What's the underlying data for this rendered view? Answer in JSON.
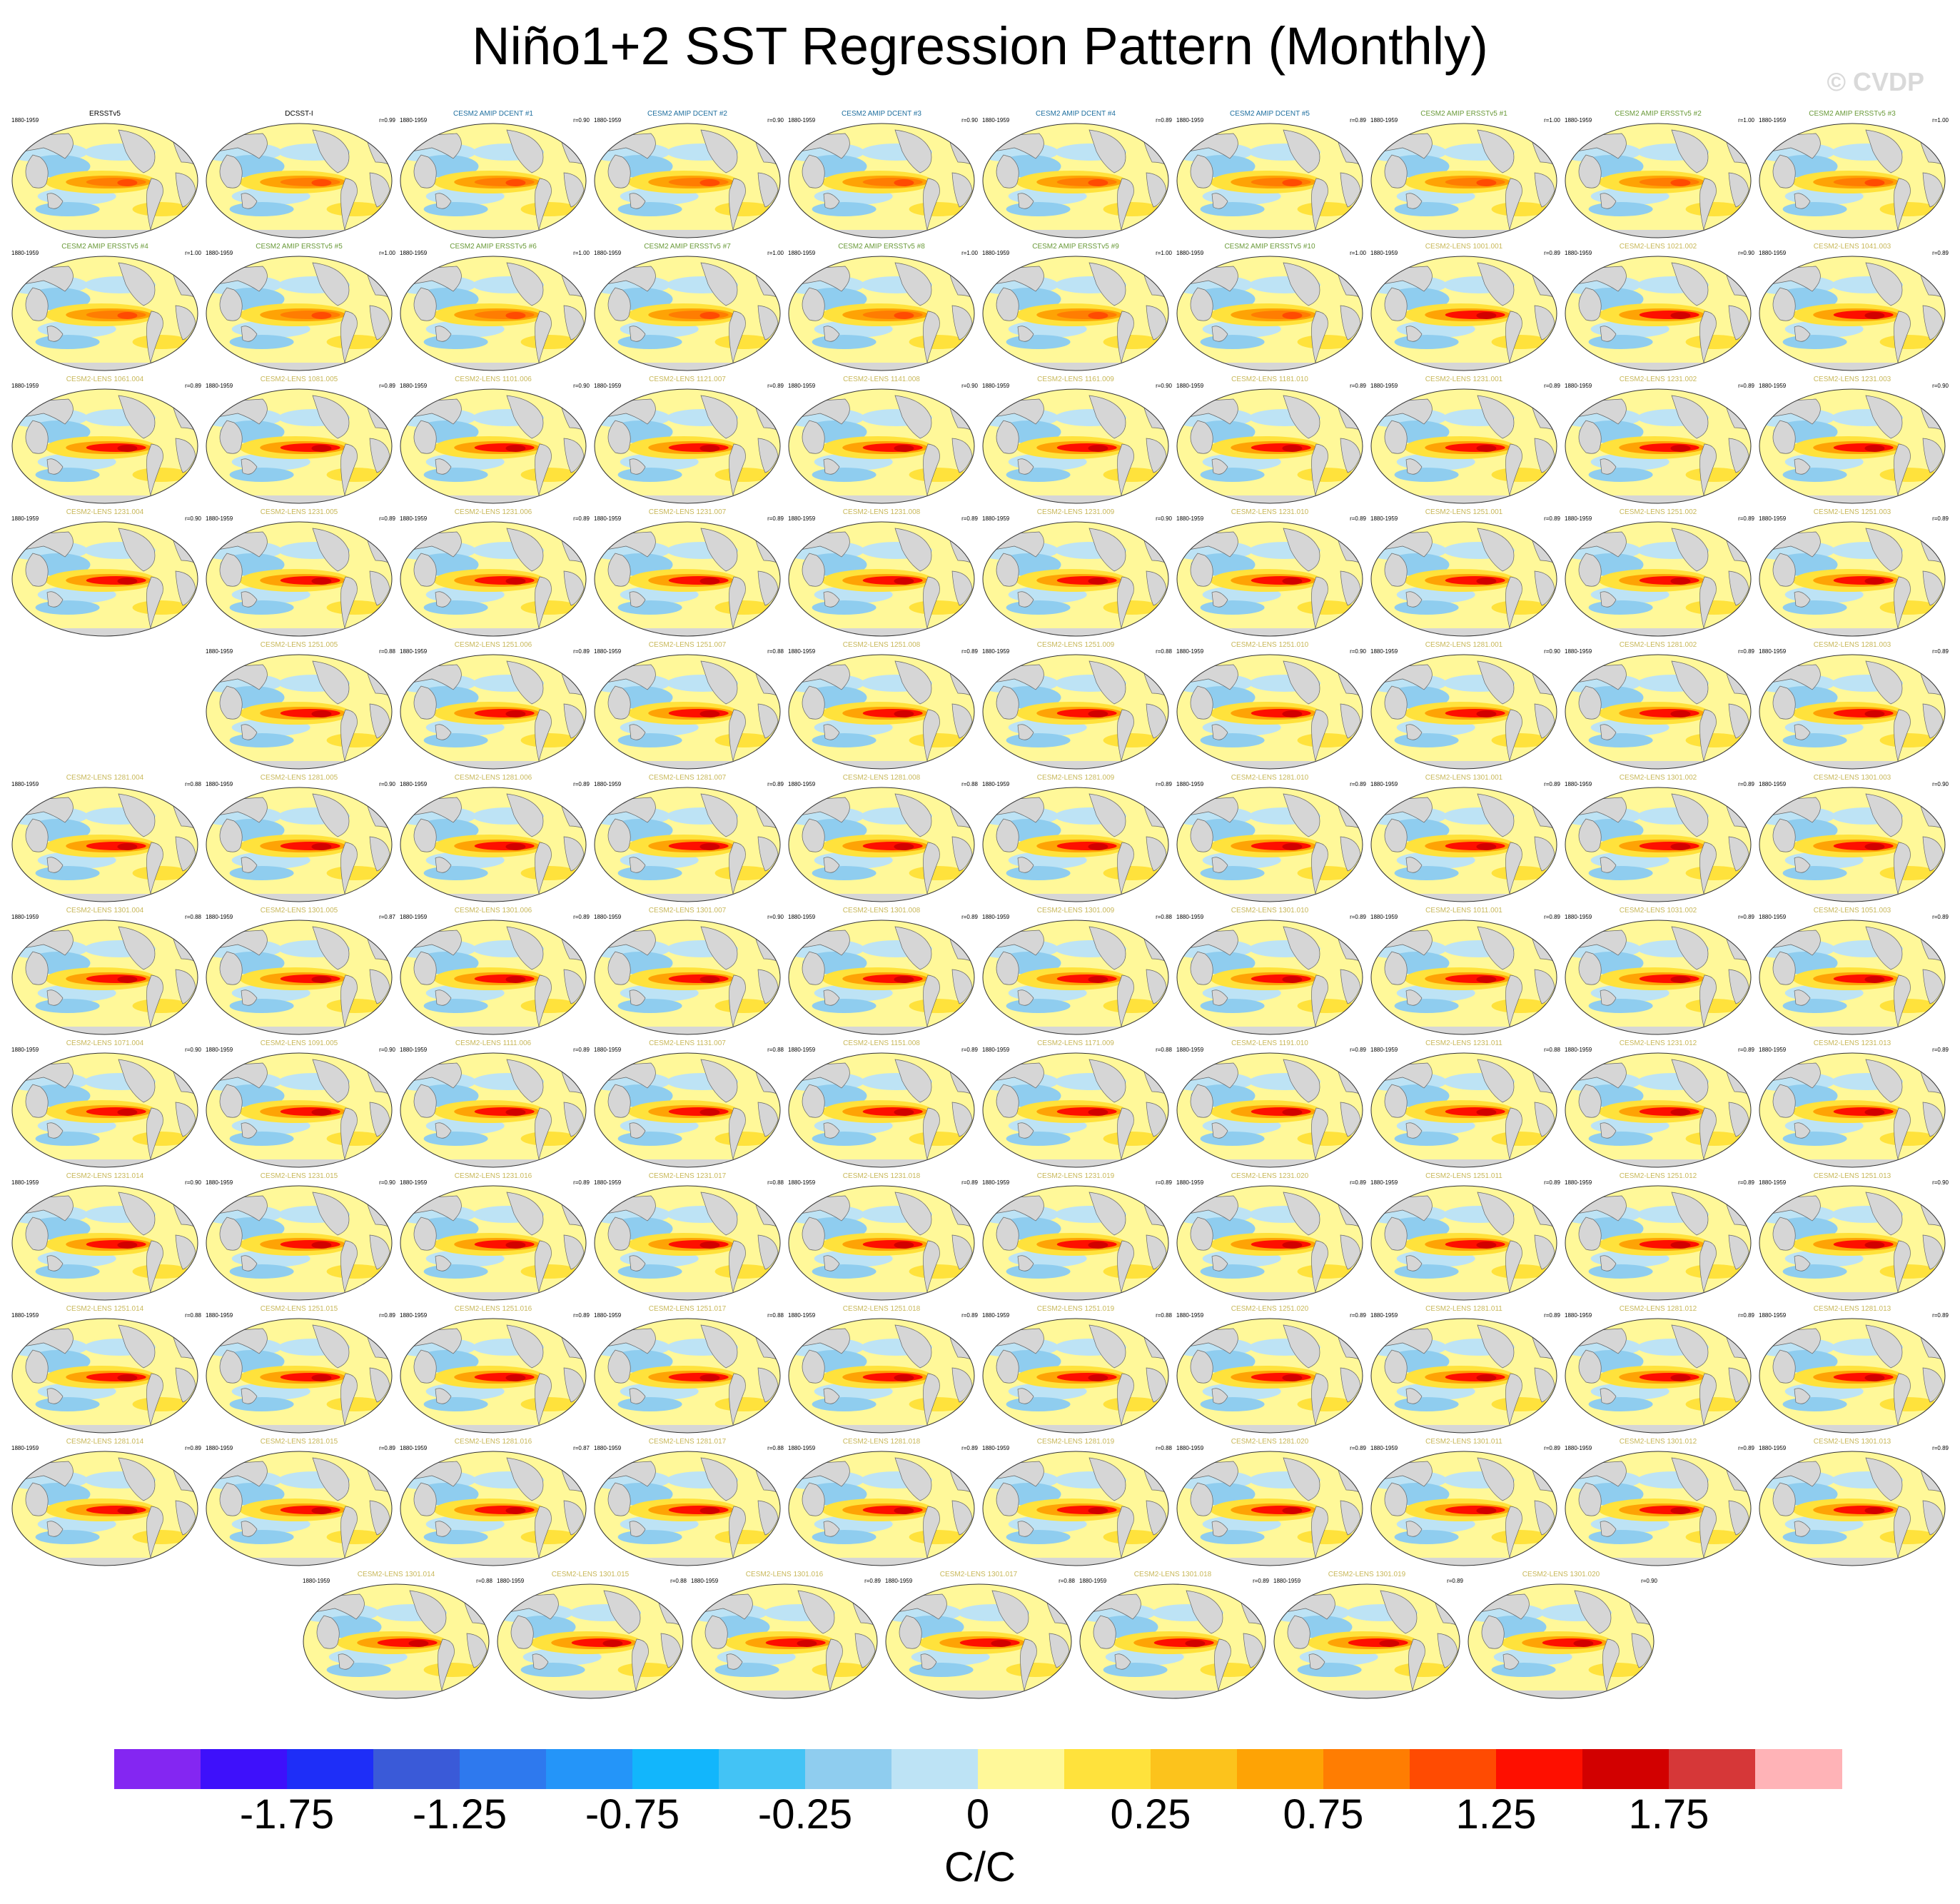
{
  "title": "Niño1+2 SST Regression Pattern (Monthly)",
  "watermark": "© CVDP",
  "chart_data": {
    "type": "heatmap",
    "description_rows": 12,
    "panels": [
      {
        "title": "ERSSTv5",
        "title_color": "#000000",
        "years": "1880-1959",
        "r": ""
      },
      {
        "title": "DCSST-I",
        "title_color": "#000000",
        "years": "",
        "r": "r=0.99"
      },
      {
        "title": "CESM2 AMIP DCENT #1",
        "title_color": "#1f6f9f",
        "years": "1880-1959",
        "r": "r=0.90"
      },
      {
        "title": "CESM2 AMIP DCENT #2",
        "title_color": "#1f6f9f",
        "years": "1880-1959",
        "r": "r=0.90"
      },
      {
        "title": "CESM2 AMIP DCENT #3",
        "title_color": "#1f6f9f",
        "years": "1880-1959",
        "r": "r=0.90"
      },
      {
        "title": "CESM2 AMIP DCENT #4",
        "title_color": "#1f6f9f",
        "years": "1880-1959",
        "r": "r=0.89"
      },
      {
        "title": "CESM2 AMIP DCENT #5",
        "title_color": "#1f6f9f",
        "years": "1880-1959",
        "r": "r=0.89"
      },
      {
        "title": "CESM2 AMIP ERSSTv5 #1",
        "title_color": "#6a9a3a",
        "years": "1880-1959",
        "r": "r=1.00"
      },
      {
        "title": "CESM2 AMIP ERSSTv5 #2",
        "title_color": "#6a9a3a",
        "years": "1880-1959",
        "r": "r=1.00"
      },
      {
        "title": "CESM2 AMIP ERSSTv5 #3",
        "title_color": "#6a9a3a",
        "years": "1880-1959",
        "r": "r=1.00"
      },
      {
        "title": "CESM2 AMIP ERSSTv5 #4",
        "title_color": "#6a9a3a",
        "years": "1880-1959",
        "r": "r=1.00"
      },
      {
        "title": "CESM2 AMIP ERSSTv5 #5",
        "title_color": "#6a9a3a",
        "years": "1880-1959",
        "r": "r=1.00"
      },
      {
        "title": "CESM2 AMIP ERSSTv5 #6",
        "title_color": "#6a9a3a",
        "years": "1880-1959",
        "r": "r=1.00"
      },
      {
        "title": "CESM2 AMIP ERSSTv5 #7",
        "title_color": "#6a9a3a",
        "years": "1880-1959",
        "r": "r=1.00"
      },
      {
        "title": "CESM2 AMIP ERSSTv5 #8",
        "title_color": "#6a9a3a",
        "years": "1880-1959",
        "r": "r=1.00"
      },
      {
        "title": "CESM2 AMIP ERSSTv5 #9",
        "title_color": "#6a9a3a",
        "years": "1880-1959",
        "r": "r=1.00"
      },
      {
        "title": "CESM2 AMIP ERSSTv5 #10",
        "title_color": "#6a9a3a",
        "years": "1880-1959",
        "r": "r=1.00"
      },
      {
        "title": "CESM2-LENS 1001.001",
        "title_color": "#c8b85a",
        "years": "1880-1959",
        "r": "r=0.89"
      },
      {
        "title": "CESM2-LENS 1021.002",
        "title_color": "#c8b85a",
        "years": "1880-1959",
        "r": "r=0.90"
      },
      {
        "title": "CESM2-LENS 1041.003",
        "title_color": "#c8b85a",
        "years": "1880-1959",
        "r": "r=0.89"
      },
      {
        "title": "CESM2-LENS 1061.004",
        "title_color": "#c8b85a",
        "years": "1880-1959",
        "r": "r=0.89"
      },
      {
        "title": "CESM2-LENS 1081.005",
        "title_color": "#c8b85a",
        "years": "1880-1959",
        "r": "r=0.89"
      },
      {
        "title": "CESM2-LENS 1101.006",
        "title_color": "#c8b85a",
        "years": "1880-1959",
        "r": "r=0.90"
      },
      {
        "title": "CESM2-LENS 1121.007",
        "title_color": "#c8b85a",
        "years": "1880-1959",
        "r": "r=0.89"
      },
      {
        "title": "CESM2-LENS 1141.008",
        "title_color": "#c8b85a",
        "years": "1880-1959",
        "r": "r=0.90"
      },
      {
        "title": "CESM2-LENS 1161.009",
        "title_color": "#c8b85a",
        "years": "1880-1959",
        "r": "r=0.90"
      },
      {
        "title": "CESM2-LENS 1181.010",
        "title_color": "#c8b85a",
        "years": "1880-1959",
        "r": "r=0.89"
      },
      {
        "title": "CESM2-LENS 1231.001",
        "title_color": "#c8b85a",
        "years": "1880-1959",
        "r": "r=0.89"
      },
      {
        "title": "CESM2-LENS 1231.002",
        "title_color": "#c8b85a",
        "years": "1880-1959",
        "r": "r=0.89"
      },
      {
        "title": "CESM2-LENS 1231.003",
        "title_color": "#c8b85a",
        "years": "1880-1959",
        "r": "r=0.90"
      },
      {
        "title": "CESM2-LENS 1231.004",
        "title_color": "#c8b85a",
        "years": "1880-1959",
        "r": "r=0.90"
      },
      {
        "title": "CESM2-LENS 1231.005",
        "title_color": "#c8b85a",
        "years": "1880-1959",
        "r": "r=0.89"
      },
      {
        "title": "CESM2-LENS 1231.006",
        "title_color": "#c8b85a",
        "years": "1880-1959",
        "r": "r=0.89"
      },
      {
        "title": "CESM2-LENS 1231.007",
        "title_color": "#c8b85a",
        "years": "1880-1959",
        "r": "r=0.89"
      },
      {
        "title": "CESM2-LENS 1231.008",
        "title_color": "#c8b85a",
        "years": "1880-1959",
        "r": "r=0.89"
      },
      {
        "title": "CESM2-LENS 1231.009",
        "title_color": "#c8b85a",
        "years": "1880-1959",
        "r": "r=0.90"
      },
      {
        "title": "CESM2-LENS 1231.010",
        "title_color": "#c8b85a",
        "years": "1880-1959",
        "r": "r=0.89"
      },
      {
        "title": "CESM2-LENS 1251.001",
        "title_color": "#c8b85a",
        "years": "1880-1959",
        "r": "r=0.89"
      },
      {
        "title": "CESM2-LENS 1251.002",
        "title_color": "#c8b85a",
        "years": "1880-1959",
        "r": "r=0.89"
      },
      {
        "title": "CESM2-LENS 1251.003",
        "title_color": "#c8b85a",
        "years": "1880-1959",
        "r": "r=0.89"
      },
      {
        "title": "CESM2-LENS 1251.005",
        "title_color": "#c8b85a",
        "years": "1880-1959",
        "r": "r=0.88"
      },
      {
        "title": "CESM2-LENS 1251.006",
        "title_color": "#c8b85a",
        "years": "1880-1959",
        "r": "r=0.89"
      },
      {
        "title": "CESM2-LENS 1251.007",
        "title_color": "#c8b85a",
        "years": "1880-1959",
        "r": "r=0.88"
      },
      {
        "title": "CESM2-LENS 1251.008",
        "title_color": "#c8b85a",
        "years": "1880-1959",
        "r": "r=0.89"
      },
      {
        "title": "CESM2-LENS 1251.009",
        "title_color": "#c8b85a",
        "years": "1880-1959",
        "r": "r=0.88"
      },
      {
        "title": "CESM2-LENS 1251.010",
        "title_color": "#c8b85a",
        "years": "1880-1959",
        "r": "r=0.90"
      },
      {
        "title": "CESM2-LENS 1281.001",
        "title_color": "#c8b85a",
        "years": "1880-1959",
        "r": "r=0.90"
      },
      {
        "title": "CESM2-LENS 1281.002",
        "title_color": "#c8b85a",
        "years": "1880-1959",
        "r": "r=0.89"
      },
      {
        "title": "CESM2-LENS 1281.003",
        "title_color": "#c8b85a",
        "years": "1880-1959",
        "r": "r=0.89"
      },
      {
        "title": "CESM2-LENS 1281.004",
        "title_color": "#c8b85a",
        "years": "1880-1959",
        "r": "r=0.88"
      },
      {
        "title": "CESM2-LENS 1281.005",
        "title_color": "#c8b85a",
        "years": "1880-1959",
        "r": "r=0.90"
      },
      {
        "title": "CESM2-LENS 1281.006",
        "title_color": "#c8b85a",
        "years": "1880-1959",
        "r": "r=0.89"
      },
      {
        "title": "CESM2-LENS 1281.007",
        "title_color": "#c8b85a",
        "years": "1880-1959",
        "r": "r=0.89"
      },
      {
        "title": "CESM2-LENS 1281.008",
        "title_color": "#c8b85a",
        "years": "1880-1959",
        "r": "r=0.88"
      },
      {
        "title": "CESM2-LENS 1281.009",
        "title_color": "#c8b85a",
        "years": "1880-1959",
        "r": "r=0.89"
      },
      {
        "title": "CESM2-LENS 1281.010",
        "title_color": "#c8b85a",
        "years": "1880-1959",
        "r": "r=0.89"
      },
      {
        "title": "CESM2-LENS 1301.001",
        "title_color": "#c8b85a",
        "years": "1880-1959",
        "r": "r=0.89"
      },
      {
        "title": "CESM2-LENS 1301.002",
        "title_color": "#c8b85a",
        "years": "1880-1959",
        "r": "r=0.89"
      },
      {
        "title": "CESM2-LENS 1301.003",
        "title_color": "#c8b85a",
        "years": "1880-1959",
        "r": "r=0.90"
      },
      {
        "title": "CESM2-LENS 1301.004",
        "title_color": "#c8b85a",
        "years": "1880-1959",
        "r": "r=0.88"
      },
      {
        "title": "CESM2-LENS 1301.005",
        "title_color": "#c8b85a",
        "years": "1880-1959",
        "r": "r=0.87"
      },
      {
        "title": "CESM2-LENS 1301.006",
        "title_color": "#c8b85a",
        "years": "1880-1959",
        "r": "r=0.89"
      },
      {
        "title": "CESM2-LENS 1301.007",
        "title_color": "#c8b85a",
        "years": "1880-1959",
        "r": "r=0.90"
      },
      {
        "title": "CESM2-LENS 1301.008",
        "title_color": "#c8b85a",
        "years": "1880-1959",
        "r": "r=0.89"
      },
      {
        "title": "CESM2-LENS 1301.009",
        "title_color": "#c8b85a",
        "years": "1880-1959",
        "r": "r=0.88"
      },
      {
        "title": "CESM2-LENS 1301.010",
        "title_color": "#c8b85a",
        "years": "1880-1959",
        "r": "r=0.89"
      },
      {
        "title": "CESM2-LENS 1011.001",
        "title_color": "#c8b85a",
        "years": "1880-1959",
        "r": "r=0.89"
      },
      {
        "title": "CESM2-LENS 1031.002",
        "title_color": "#c8b85a",
        "years": "1880-1959",
        "r": "r=0.89"
      },
      {
        "title": "CESM2-LENS 1051.003",
        "title_color": "#c8b85a",
        "years": "1880-1959",
        "r": "r=0.89"
      },
      {
        "title": "CESM2-LENS 1071.004",
        "title_color": "#c8b85a",
        "years": "1880-1959",
        "r": "r=0.90"
      },
      {
        "title": "CESM2-LENS 1091.005",
        "title_color": "#c8b85a",
        "years": "1880-1959",
        "r": "r=0.90"
      },
      {
        "title": "CESM2-LENS 1111.006",
        "title_color": "#c8b85a",
        "years": "1880-1959",
        "r": "r=0.89"
      },
      {
        "title": "CESM2-LENS 1131.007",
        "title_color": "#c8b85a",
        "years": "1880-1959",
        "r": "r=0.88"
      },
      {
        "title": "CESM2-LENS 1151.008",
        "title_color": "#c8b85a",
        "years": "1880-1959",
        "r": "r=0.89"
      },
      {
        "title": "CESM2-LENS 1171.009",
        "title_color": "#c8b85a",
        "years": "1880-1959",
        "r": "r=0.88"
      },
      {
        "title": "CESM2-LENS 1191.010",
        "title_color": "#c8b85a",
        "years": "1880-1959",
        "r": "r=0.89"
      },
      {
        "title": "CESM2-LENS 1231.011",
        "title_color": "#c8b85a",
        "years": "1880-1959",
        "r": "r=0.88"
      },
      {
        "title": "CESM2-LENS 1231.012",
        "title_color": "#c8b85a",
        "years": "1880-1959",
        "r": "r=0.89"
      },
      {
        "title": "CESM2-LENS 1231.013",
        "title_color": "#c8b85a",
        "years": "1880-1959",
        "r": "r=0.89"
      },
      {
        "title": "CESM2-LENS 1231.014",
        "title_color": "#c8b85a",
        "years": "1880-1959",
        "r": "r=0.90"
      },
      {
        "title": "CESM2-LENS 1231.015",
        "title_color": "#c8b85a",
        "years": "1880-1959",
        "r": "r=0.90"
      },
      {
        "title": "CESM2-LENS 1231.016",
        "title_color": "#c8b85a",
        "years": "1880-1959",
        "r": "r=0.89"
      },
      {
        "title": "CESM2-LENS 1231.017",
        "title_color": "#c8b85a",
        "years": "1880-1959",
        "r": "r=0.88"
      },
      {
        "title": "CESM2-LENS 1231.018",
        "title_color": "#c8b85a",
        "years": "1880-1959",
        "r": "r=0.89"
      },
      {
        "title": "CESM2-LENS 1231.019",
        "title_color": "#c8b85a",
        "years": "1880-1959",
        "r": "r=0.89"
      },
      {
        "title": "CESM2-LENS 1231.020",
        "title_color": "#c8b85a",
        "years": "1880-1959",
        "r": "r=0.89"
      },
      {
        "title": "CESM2-LENS 1251.011",
        "title_color": "#c8b85a",
        "years": "1880-1959",
        "r": "r=0.89"
      },
      {
        "title": "CESM2-LENS 1251.012",
        "title_color": "#c8b85a",
        "years": "1880-1959",
        "r": "r=0.89"
      },
      {
        "title": "CESM2-LENS 1251.013",
        "title_color": "#c8b85a",
        "years": "1880-1959",
        "r": "r=0.90"
      },
      {
        "title": "CESM2-LENS 1251.014",
        "title_color": "#c8b85a",
        "years": "1880-1959",
        "r": "r=0.88"
      },
      {
        "title": "CESM2-LENS 1251.015",
        "title_color": "#c8b85a",
        "years": "1880-1959",
        "r": "r=0.89"
      },
      {
        "title": "CESM2-LENS 1251.016",
        "title_color": "#c8b85a",
        "years": "1880-1959",
        "r": "r=0.89"
      },
      {
        "title": "CESM2-LENS 1251.017",
        "title_color": "#c8b85a",
        "years": "1880-1959",
        "r": "r=0.88"
      },
      {
        "title": "CESM2-LENS 1251.018",
        "title_color": "#c8b85a",
        "years": "1880-1959",
        "r": "r=0.89"
      },
      {
        "title": "CESM2-LENS 1251.019",
        "title_color": "#c8b85a",
        "years": "1880-1959",
        "r": "r=0.88"
      },
      {
        "title": "CESM2-LENS 1251.020",
        "title_color": "#c8b85a",
        "years": "1880-1959",
        "r": "r=0.89"
      },
      {
        "title": "CESM2-LENS 1281.011",
        "title_color": "#c8b85a",
        "years": "1880-1959",
        "r": "r=0.89"
      },
      {
        "title": "CESM2-LENS 1281.012",
        "title_color": "#c8b85a",
        "years": "1880-1959",
        "r": "r=0.89"
      },
      {
        "title": "CESM2-LENS 1281.013",
        "title_color": "#c8b85a",
        "years": "1880-1959",
        "r": "r=0.89"
      },
      {
        "title": "CESM2-LENS 1281.014",
        "title_color": "#c8b85a",
        "years": "1880-1959",
        "r": "r=0.89"
      },
      {
        "title": "CESM2-LENS 1281.015",
        "title_color": "#c8b85a",
        "years": "1880-1959",
        "r": "r=0.89"
      },
      {
        "title": "CESM2-LENS 1281.016",
        "title_color": "#c8b85a",
        "years": "1880-1959",
        "r": "r=0.87"
      },
      {
        "title": "CESM2-LENS 1281.017",
        "title_color": "#c8b85a",
        "years": "1880-1959",
        "r": "r=0.88"
      },
      {
        "title": "CESM2-LENS 1281.018",
        "title_color": "#c8b85a",
        "years": "1880-1959",
        "r": "r=0.89"
      },
      {
        "title": "CESM2-LENS 1281.019",
        "title_color": "#c8b85a",
        "years": "1880-1959",
        "r": "r=0.88"
      },
      {
        "title": "CESM2-LENS 1281.020",
        "title_color": "#c8b85a",
        "years": "1880-1959",
        "r": "r=0.89"
      },
      {
        "title": "CESM2-LENS 1301.011",
        "title_color": "#c8b85a",
        "years": "1880-1959",
        "r": "r=0.89"
      },
      {
        "title": "CESM2-LENS 1301.012",
        "title_color": "#c8b85a",
        "years": "1880-1959",
        "r": "r=0.89"
      },
      {
        "title": "CESM2-LENS 1301.013",
        "title_color": "#c8b85a",
        "years": "1880-1959",
        "r": "r=0.89"
      },
      {
        "title": "CESM2-LENS 1301.014",
        "title_color": "#c8b85a",
        "years": "1880-1959",
        "r": "r=0.88"
      },
      {
        "title": "CESM2-LENS 1301.015",
        "title_color": "#c8b85a",
        "years": "1880-1959",
        "r": "r=0.88"
      },
      {
        "title": "CESM2-LENS 1301.016",
        "title_color": "#c8b85a",
        "years": "1880-1959",
        "r": "r=0.89"
      },
      {
        "title": "CESM2-LENS 1301.017",
        "title_color": "#c8b85a",
        "years": "1880-1959",
        "r": "r=0.88"
      },
      {
        "title": "CESM2-LENS 1301.018",
        "title_color": "#c8b85a",
        "years": "1880-1959",
        "r": "r=0.89"
      },
      {
        "title": "CESM2-LENS 1301.019",
        "title_color": "#c8b85a",
        "years": "1880-1959",
        "r": "r=0.89"
      },
      {
        "title": "CESM2-LENS 1301.020",
        "title_color": "#c8b85a",
        "years": "",
        "r": "r=0.90"
      }
    ],
    "colorbar": {
      "colors": [
        "#8426f2",
        "#3e10fb",
        "#1e2ef8",
        "#3a5ad8",
        "#2e79ee",
        "#2495f9",
        "#12b6fc",
        "#43c3f5",
        "#8fcdef",
        "#bde3f5",
        "#fff899",
        "#ffe23c",
        "#fcc31c",
        "#fea305",
        "#ff7d02",
        "#ff4b02",
        "#fe0f00",
        "#d20000",
        "#d63738",
        "#ffb3b7"
      ],
      "tick_labels": [
        "-1.75",
        "-1.25",
        "-0.75",
        "-0.25",
        "0",
        "0.25",
        "0.75",
        "1.25",
        "1.75"
      ],
      "unit": "C/C"
    }
  }
}
